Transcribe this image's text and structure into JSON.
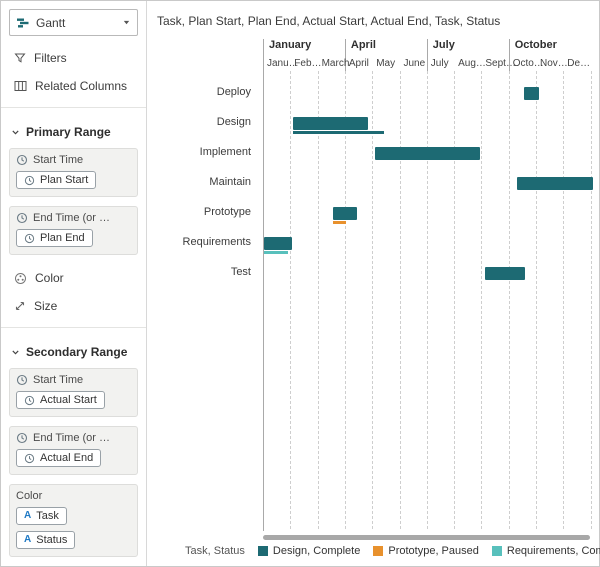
{
  "sidebar": {
    "viz_selector": {
      "label": "Gantt"
    },
    "filters_label": "Filters",
    "related_columns_label": "Related Columns",
    "primary_range": {
      "title": "Primary Range",
      "start_time": {
        "label": "Start Time",
        "pill": "Plan Start"
      },
      "end_time": {
        "label": "End Time (or …",
        "pill": "Plan End"
      },
      "color_label": "Color",
      "size_label": "Size"
    },
    "secondary_range": {
      "title": "Secondary Range",
      "start_time": {
        "label": "Start Time",
        "pill": "Actual Start"
      },
      "end_time": {
        "label": "End Time (or …",
        "pill": "Actual End"
      },
      "color": {
        "label": "Color",
        "pills": [
          "Task",
          "Status"
        ]
      }
    }
  },
  "main": {
    "title": "Task, Plan Start, Plan End, Actual Start, Actual End, Task, Status"
  },
  "chart_data": {
    "type": "gantt",
    "title": "Task, Plan Start, Plan End, Actual Start, Actual End, Task, Status",
    "time_axis": {
      "unit": "month_index_from_january",
      "range": [
        0,
        12
      ],
      "quarters": [
        {
          "label": "January",
          "month": 0
        },
        {
          "label": "April",
          "month": 3
        },
        {
          "label": "July",
          "month": 6
        },
        {
          "label": "October",
          "month": 9
        }
      ],
      "months": [
        "Janu…",
        "Feb…",
        "March",
        "April",
        "May",
        "June",
        "July",
        "Aug…",
        "Sept…",
        "Octo…",
        "Nov…",
        "De…"
      ]
    },
    "bar_color": "#1d6a73",
    "tasks": [
      {
        "name": "Deploy",
        "plan_start": 9.55,
        "plan_end": 10.1
      },
      {
        "name": "Design",
        "plan_start": 1.1,
        "plan_end": 3.85,
        "actual_start": 1.1,
        "actual_end": 4.45,
        "status": "Complete",
        "actual_color": "#1d6a73"
      },
      {
        "name": "Implement",
        "plan_start": 4.1,
        "plan_end": 7.95
      },
      {
        "name": "Maintain",
        "plan_start": 9.3,
        "plan_end": 12.1
      },
      {
        "name": "Prototype",
        "plan_start": 2.55,
        "plan_end": 3.45,
        "actual_start": 2.55,
        "actual_end": 3.05,
        "status": "Paused",
        "actual_color": "#e8912d"
      },
      {
        "name": "Requirements",
        "plan_start": 0.05,
        "plan_end": 1.05,
        "actual_start": 0.05,
        "actual_end": 0.9,
        "status": "Complete",
        "actual_color": "#58c0bc"
      },
      {
        "name": "Test",
        "plan_start": 8.15,
        "plan_end": 9.6
      }
    ],
    "legend": {
      "title": "Task, Status",
      "entries": [
        {
          "label": "Design, Complete",
          "color": "#1d6a73"
        },
        {
          "label": "Prototype, Paused",
          "color": "#e8912d"
        },
        {
          "label": "Requirements, Complete",
          "color": "#58c0bc"
        }
      ]
    }
  }
}
